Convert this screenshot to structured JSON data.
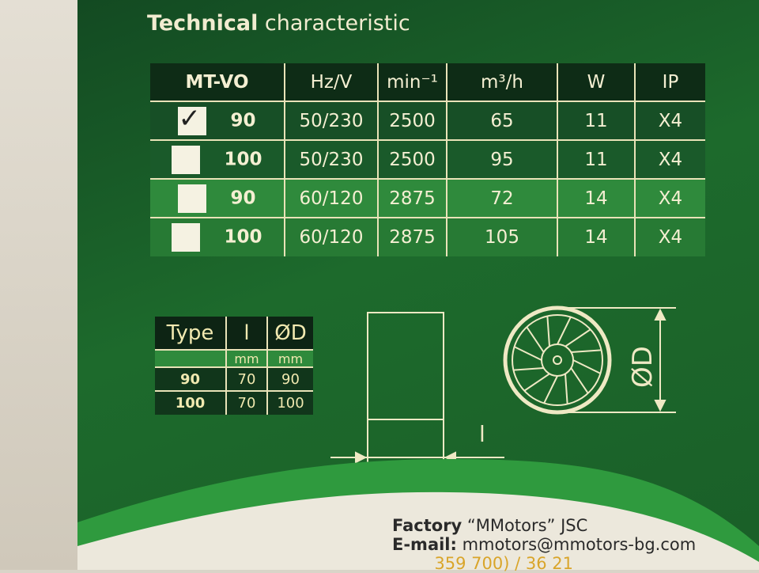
{
  "title": {
    "bold": "Technical",
    "rest": " characteristic"
  },
  "spec_table": {
    "headers": [
      "MT-VO",
      "Hz/V",
      "min⁻¹",
      "m³/h",
      "W",
      "IP"
    ],
    "rows": [
      {
        "checked": true,
        "cells": [
          "90",
          "50/230",
          "2500",
          "65",
          "11",
          "X4"
        ]
      },
      {
        "checked": false,
        "cells": [
          "100",
          "50/230",
          "2500",
          "95",
          "11",
          "X4"
        ]
      },
      {
        "checked": false,
        "cells": [
          "90",
          "60/120",
          "2875",
          "72",
          "14",
          "X4"
        ]
      },
      {
        "checked": false,
        "cells": [
          "100",
          "60/120",
          "2875",
          "105",
          "14",
          "X4"
        ]
      }
    ]
  },
  "dims_table": {
    "headers": [
      "Type",
      "l",
      "ØD"
    ],
    "units": [
      "",
      "mm",
      "mm"
    ],
    "rows": [
      [
        "90",
        "70",
        "90"
      ],
      [
        "100",
        "70",
        "100"
      ]
    ]
  },
  "diagram": {
    "length_label": "l",
    "diameter_label": "ØD"
  },
  "contact": {
    "factory_label": "Factory",
    "factory_value": " “MMotors” JSC",
    "email_label": "E-mail:",
    "email_value": " mmotors@mmotors-bg.com",
    "partial_line": "        359 700) / 36 21"
  },
  "colors": {
    "box_green": "#1d6a2c",
    "dark_green": "#0e2c16",
    "light_green": "#2f8a3c",
    "cream_text": "#f4efd2"
  }
}
